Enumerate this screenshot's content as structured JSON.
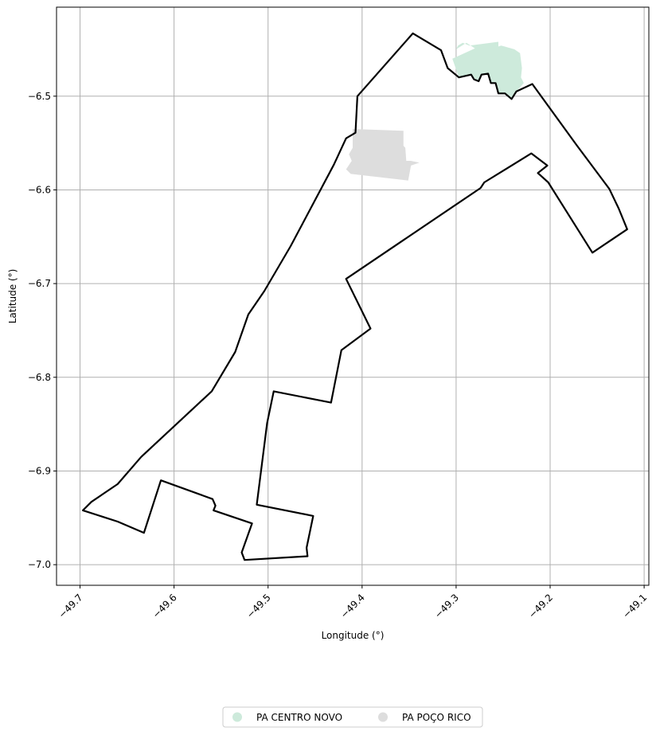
{
  "chart_data": {
    "type": "map",
    "xlabel": "Longitude (°)",
    "ylabel": "Latitude (°)",
    "xlim": [
      -49.725,
      -49.095
    ],
    "ylim": [
      -7.022,
      -6.405
    ],
    "xticks": [
      -49.7,
      -49.6,
      -49.5,
      -49.4,
      -49.3,
      -49.2,
      -49.1
    ],
    "yticks": [
      -6.5,
      -6.6,
      -6.7,
      -6.8,
      -6.9,
      -7.0
    ],
    "xtick_labels": [
      "−49.7",
      "−49.6",
      "−49.5",
      "−49.4",
      "−49.3",
      "−49.2",
      "−49.1"
    ],
    "ytick_labels": [
      "−6.5",
      "−6.6",
      "−6.7",
      "−6.8",
      "−6.9",
      "−7.0"
    ],
    "grid": true,
    "legend_position": "bottom-center",
    "colors": {
      "boundary": "#000000",
      "grid": "#b0b0b0",
      "centro_novo": "#cdeadb",
      "poco_rico": "#dddddd"
    },
    "boundary": [
      [
        -49.346,
        -6.433
      ],
      [
        -49.316,
        -6.451
      ],
      [
        -49.309,
        -6.47
      ],
      [
        -49.297,
        -6.48
      ],
      [
        -49.284,
        -6.477
      ],
      [
        -49.281,
        -6.482
      ],
      [
        -49.276,
        -6.484
      ],
      [
        -49.273,
        -6.477
      ],
      [
        -49.266,
        -6.476
      ],
      [
        -49.263,
        -6.486
      ],
      [
        -49.258,
        -6.486
      ],
      [
        -49.255,
        -6.497
      ],
      [
        -49.248,
        -6.497
      ],
      [
        -49.241,
        -6.503
      ],
      [
        -49.236,
        -6.495
      ],
      [
        -49.219,
        -6.487
      ],
      [
        -49.172,
        -6.552
      ],
      [
        -49.137,
        -6.599
      ],
      [
        -49.127,
        -6.62
      ],
      [
        -49.118,
        -6.642
      ],
      [
        -49.155,
        -6.667
      ],
      [
        -49.202,
        -6.592
      ],
      [
        -49.213,
        -6.582
      ],
      [
        -49.203,
        -6.574
      ],
      [
        -49.22,
        -6.561
      ],
      [
        -49.27,
        -6.592
      ],
      [
        -49.274,
        -6.598
      ],
      [
        -49.417,
        -6.695
      ],
      [
        -49.391,
        -6.748
      ],
      [
        -49.422,
        -6.771
      ],
      [
        -49.433,
        -6.827
      ],
      [
        -49.494,
        -6.815
      ],
      [
        -49.501,
        -6.849
      ],
      [
        -49.512,
        -6.936
      ],
      [
        -49.452,
        -6.948
      ],
      [
        -49.459,
        -6.982
      ],
      [
        -49.458,
        -6.991
      ],
      [
        -49.525,
        -6.995
      ],
      [
        -49.528,
        -6.987
      ],
      [
        -49.517,
        -6.956
      ],
      [
        -49.558,
        -6.942
      ],
      [
        -49.556,
        -6.937
      ],
      [
        -49.559,
        -6.93
      ],
      [
        -49.614,
        -6.91
      ],
      [
        -49.632,
        -6.966
      ],
      [
        -49.66,
        -6.954
      ],
      [
        -49.697,
        -6.942
      ],
      [
        -49.688,
        -6.933
      ],
      [
        -49.66,
        -6.914
      ],
      [
        -49.635,
        -6.885
      ],
      [
        -49.56,
        -6.815
      ],
      [
        -49.535,
        -6.773
      ],
      [
        -49.521,
        -6.733
      ],
      [
        -49.504,
        -6.708
      ],
      [
        -49.476,
        -6.66
      ],
      [
        -49.43,
        -6.573
      ],
      [
        -49.417,
        -6.545
      ],
      [
        -49.407,
        -6.539
      ],
      [
        -49.405,
        -6.5
      ],
      [
        -49.346,
        -6.433
      ]
    ],
    "regions": [
      {
        "name": "PA CENTRO NOVO",
        "color": "#cdeadb",
        "polygon": [
          [
            -49.28,
            -6.449
          ],
          [
            -49.289,
            -6.443
          ],
          [
            -49.3,
            -6.45
          ],
          [
            -49.298,
            -6.446
          ],
          [
            -49.293,
            -6.443
          ],
          [
            -49.286,
            -6.446
          ],
          [
            -49.255,
            -6.442
          ],
          [
            -49.255,
            -6.447
          ],
          [
            -49.252,
            -6.446
          ],
          [
            -49.238,
            -6.45
          ],
          [
            -49.232,
            -6.454
          ],
          [
            -49.23,
            -6.47
          ],
          [
            -49.231,
            -6.48
          ],
          [
            -49.228,
            -6.486
          ],
          [
            -49.236,
            -6.495
          ],
          [
            -49.241,
            -6.503
          ],
          [
            -49.248,
            -6.497
          ],
          [
            -49.255,
            -6.497
          ],
          [
            -49.258,
            -6.486
          ],
          [
            -49.263,
            -6.486
          ],
          [
            -49.266,
            -6.476
          ],
          [
            -49.273,
            -6.477
          ],
          [
            -49.276,
            -6.484
          ],
          [
            -49.281,
            -6.482
          ],
          [
            -49.284,
            -6.477
          ],
          [
            -49.297,
            -6.48
          ],
          [
            -49.304,
            -6.46
          ]
        ]
      },
      {
        "name": "PA POÇO RICO",
        "color": "#dddddd",
        "polygon": [
          [
            -49.41,
            -6.535
          ],
          [
            -49.356,
            -6.537
          ],
          [
            -49.356,
            -6.553
          ],
          [
            -49.354,
            -6.555
          ],
          [
            -49.353,
            -6.569
          ],
          [
            -49.348,
            -6.569
          ],
          [
            -49.339,
            -6.571
          ],
          [
            -49.348,
            -6.574
          ],
          [
            -49.351,
            -6.59
          ],
          [
            -49.412,
            -6.583
          ],
          [
            -49.417,
            -6.578
          ],
          [
            -49.411,
            -6.569
          ],
          [
            -49.414,
            -6.562
          ],
          [
            -49.41,
            -6.555
          ],
          [
            -49.41,
            -6.545
          ]
        ]
      }
    ]
  }
}
